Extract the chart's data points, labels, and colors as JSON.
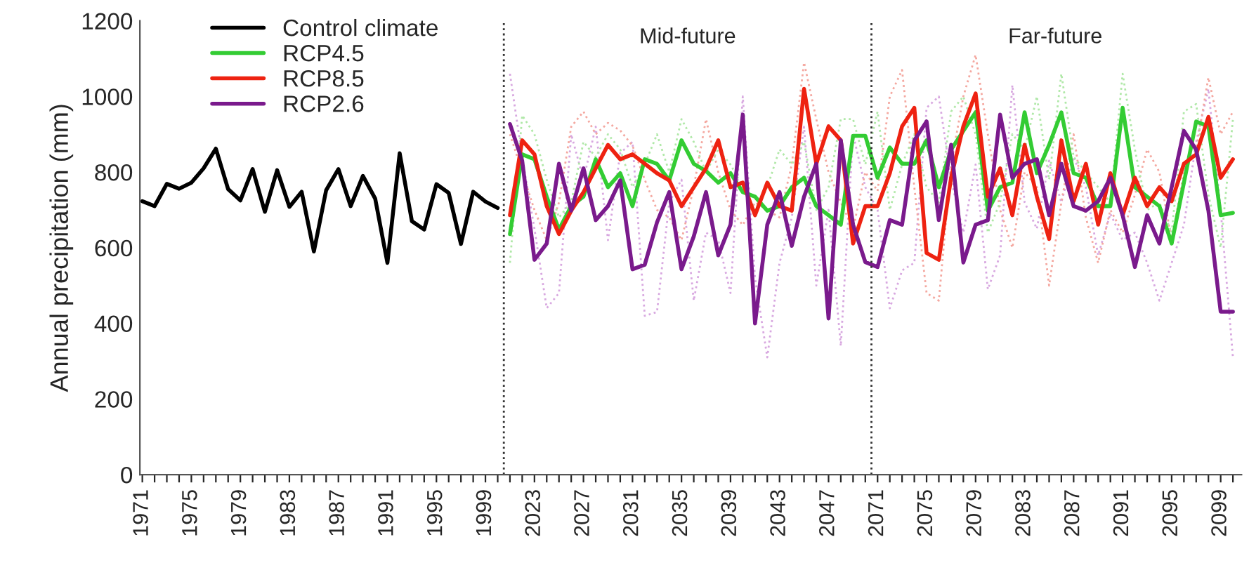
{
  "chart_data": {
    "type": "line",
    "ylabel": "Annual precipitation (mm)",
    "categories": [
      "1971",
      null,
      null,
      null,
      "1975",
      null,
      null,
      null,
      "1979",
      null,
      null,
      null,
      "1983",
      null,
      null,
      null,
      "1987",
      null,
      null,
      null,
      "1991",
      null,
      null,
      null,
      "1995",
      null,
      null,
      null,
      "1999",
      null,
      null,
      null,
      "2023",
      null,
      null,
      null,
      "2027",
      null,
      null,
      null,
      "2031",
      null,
      null,
      null,
      "2035",
      null,
      null,
      null,
      "2039",
      null,
      null,
      null,
      "2043",
      null,
      null,
      null,
      "2047",
      null,
      null,
      null,
      "2071",
      null,
      null,
      null,
      "2075",
      null,
      null,
      null,
      "2079",
      null,
      null,
      null,
      "2083",
      null,
      null,
      null,
      "2087",
      null,
      null,
      null,
      "2091",
      null,
      null,
      null,
      "2095",
      null,
      null,
      null,
      "2099",
      null
    ],
    "ylim": [
      0,
      1200
    ],
    "yticks": [
      0,
      200,
      400,
      600,
      800,
      1000,
      1200
    ],
    "grid": false,
    "legend": "top left",
    "annotations": [
      "Mid-future",
      "Far-future"
    ],
    "series": [
      {
        "color": "#d8a8e0",
        "line_style": "dotted",
        "values": [
          null,
          null,
          null,
          null,
          null,
          null,
          null,
          null,
          null,
          null,
          null,
          null,
          null,
          null,
          null,
          null,
          null,
          null,
          null,
          null,
          null,
          null,
          null,
          null,
          null,
          null,
          null,
          null,
          null,
          null,
          1060,
          840,
          650,
          440,
          480,
          900,
          780,
          920,
          620,
          850,
          880,
          420,
          430,
          720,
          780,
          460,
          640,
          620,
          480,
          1000,
          520,
          310,
          560,
          680,
          920,
          500,
          700,
          340,
          900,
          760,
          700,
          440,
          540,
          560,
          970,
          1000,
          780,
          640,
          820,
          490,
          580,
          1030,
          720,
          650,
          830,
          720,
          840,
          760,
          580,
          690,
          620,
          640,
          560,
          460,
          560,
          660,
          880,
          1020,
          700,
          310
        ]
      },
      {
        "color": "#f4a8a0",
        "line_style": "dotted",
        "values": [
          null,
          null,
          null,
          null,
          null,
          null,
          null,
          null,
          null,
          null,
          null,
          null,
          null,
          null,
          null,
          null,
          null,
          null,
          null,
          null,
          null,
          null,
          null,
          null,
          null,
          null,
          null,
          null,
          null,
          null,
          900,
          800,
          700,
          620,
          720,
          920,
          960,
          900,
          930,
          910,
          870,
          780,
          700,
          680,
          620,
          760,
          940,
          800,
          700,
          660,
          720,
          700,
          680,
          820,
          1090,
          940,
          800,
          720,
          650,
          800,
          750,
          1000,
          1070,
          760,
          480,
          460,
          820,
          1000,
          1110,
          900,
          700,
          600,
          800,
          760,
          500,
          720,
          900,
          680,
          560,
          700,
          640,
          740,
          860,
          800,
          620,
          800,
          860,
          1050,
          900,
          960
        ]
      },
      {
        "color": "#b0e8a8",
        "line_style": "dotted",
        "values": [
          null,
          null,
          null,
          null,
          null,
          null,
          null,
          null,
          null,
          null,
          null,
          null,
          null,
          null,
          null,
          null,
          null,
          null,
          null,
          null,
          null,
          null,
          null,
          null,
          null,
          null,
          null,
          null,
          null,
          null,
          560,
          950,
          900,
          780,
          680,
          720,
          880,
          840,
          900,
          860,
          760,
          820,
          900,
          800,
          940,
          880,
          800,
          860,
          820,
          760,
          700,
          760,
          860,
          820,
          880,
          700,
          760,
          940,
          940,
          820,
          960,
          700,
          820,
          900,
          760,
          720,
          960,
          1000,
          900,
          640,
          720,
          900,
          860,
          1000,
          780,
          1060,
          840,
          800,
          760,
          720,
          1060,
          860,
          700,
          720,
          640,
          960,
          980,
          740,
          600,
          940
        ]
      },
      {
        "name": "Control climate",
        "color": "#000000",
        "line_style": "solid",
        "values": [
          723,
          710,
          769,
          756,
          772,
          810,
          862,
          755,
          725,
          808,
          695,
          805,
          708,
          748,
          590,
          752,
          808,
          710,
          790,
          730,
          560,
          850,
          670,
          648,
          768,
          745,
          610,
          748,
          722,
          705,
          null,
          null,
          null,
          null,
          null,
          null,
          null,
          null,
          null,
          null,
          null,
          null,
          null,
          null,
          null,
          null,
          null,
          null,
          null,
          null,
          null,
          null,
          null,
          null,
          null,
          null,
          null,
          null,
          null,
          null,
          null,
          null,
          null,
          null,
          null,
          null,
          null,
          null,
          null,
          null,
          null,
          null,
          null,
          null,
          null,
          null,
          null,
          null,
          null,
          null,
          null,
          null,
          null,
          null,
          null,
          null,
          null,
          null,
          null,
          null
        ]
      },
      {
        "name": "RCP4.5",
        "color": "#33cc33",
        "line_style": "solid",
        "values": [
          null,
          null,
          null,
          null,
          null,
          null,
          null,
          null,
          null,
          null,
          null,
          null,
          null,
          null,
          null,
          null,
          null,
          null,
          null,
          null,
          null,
          null,
          null,
          null,
          null,
          null,
          null,
          null,
          null,
          null,
          636,
          847,
          834,
          735,
          648,
          710,
          735,
          834,
          760,
          797,
          710,
          834,
          822,
          778,
          884,
          822,
          803,
          772,
          797,
          747,
          735,
          698,
          710,
          760,
          785,
          710,
          686,
          661,
          896,
          896,
          785,
          865,
          822,
          822,
          884,
          760,
          859,
          909,
          958,
          698,
          760,
          772,
          958,
          797,
          872,
          958,
          797,
          785,
          710,
          710,
          970,
          760,
          735,
          710,
          611,
          772,
          934,
          921,
          686,
          692
        ]
      },
      {
        "name": "RCP8.5",
        "color": "#ee2211",
        "line_style": "solid",
        "values": [
          null,
          null,
          null,
          null,
          null,
          null,
          null,
          null,
          null,
          null,
          null,
          null,
          null,
          null,
          null,
          null,
          null,
          null,
          null,
          null,
          null,
          null,
          null,
          null,
          null,
          null,
          null,
          null,
          null,
          null,
          686,
          884,
          847,
          710,
          636,
          698,
          747,
          810,
          872,
          834,
          847,
          822,
          797,
          778,
          710,
          760,
          810,
          884,
          760,
          772,
          686,
          772,
          710,
          698,
          1020,
          822,
          921,
          884,
          611,
          710,
          710,
          797,
          921,
          970,
          586,
          568,
          785,
          921,
          1008,
          735,
          810,
          686,
          872,
          735,
          623,
          884,
          723,
          822,
          661,
          797,
          686,
          785,
          710,
          760,
          723,
          822,
          847,
          946,
          785,
          834
        ]
      },
      {
        "name": "RCP2.6",
        "color": "#7a1a8c",
        "line_style": "solid",
        "values": [
          null,
          null,
          null,
          null,
          null,
          null,
          null,
          null,
          null,
          null,
          null,
          null,
          null,
          null,
          null,
          null,
          null,
          null,
          null,
          null,
          null,
          null,
          null,
          null,
          null,
          null,
          null,
          null,
          null,
          null,
          927,
          830,
          568,
          611,
          822,
          698,
          810,
          673,
          710,
          778,
          543,
          555,
          667,
          747,
          543,
          630,
          747,
          580,
          661,
          952,
          400,
          661,
          747,
          605,
          735,
          822,
          413,
          884,
          661,
          562,
          549,
          673,
          661,
          884,
          934,
          673,
          872,
          561,
          661,
          673,
          952,
          785,
          822,
          834,
          686,
          822,
          710,
          698,
          723,
          785,
          686,
          549,
          686,
          611,
          760,
          909,
          859,
          698,
          431,
          431
        ]
      }
    ]
  }
}
